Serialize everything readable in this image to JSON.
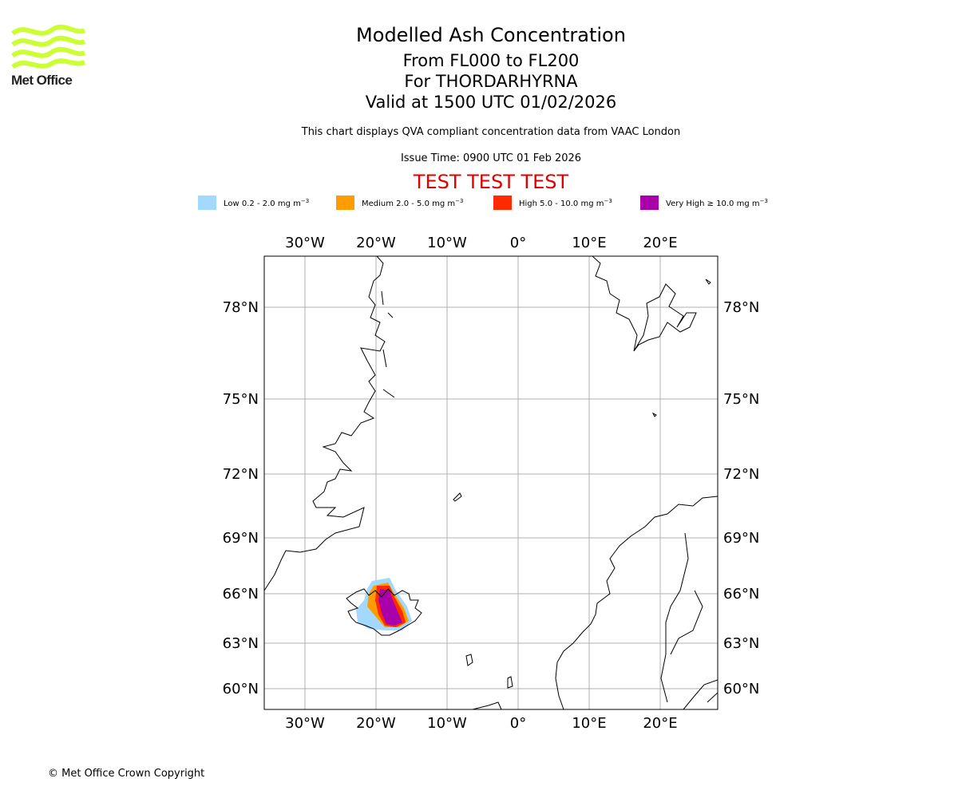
{
  "header": {
    "logo_text": "Met Office",
    "title": "Modelled Ash Concentration",
    "levels": "From FL000 to FL200",
    "volcano": "For THORDARHYRNA",
    "valid": "Valid at 1500 UTC 01/02/2026",
    "description": "This chart displays QVA compliant concentration data from VAAC London",
    "issue_time": "Issue Time: 0900 UTC 01 Feb 2026",
    "test_banner": "TEST TEST TEST"
  },
  "legend": [
    {
      "prefix": "Low 0.2 - 2.0 mg m",
      "color": "#a3d8ff"
    },
    {
      "prefix": "Medium 2.0 - 5.0 mg m",
      "color": "#ff9c00"
    },
    {
      "prefix": "High 5.0 - 10.0 mg m",
      "color": "#ff2a00"
    },
    {
      "prefix": "Very High  ≥  10.0 mg m",
      "color": "#aa00aa"
    }
  ],
  "legend_unit_exponent": "−3",
  "map": {
    "lon_ticks": [
      "30°W",
      "20°W",
      "10°W",
      "0°",
      "10°E",
      "20°E"
    ],
    "lat_ticks": [
      "78°N",
      "75°N",
      "72°N",
      "69°N",
      "66°N",
      "63°N",
      "60°N"
    ],
    "gridline_color": "#b0b0b0"
  },
  "footer": {
    "copyright": "© Met Office Crown Copyright"
  }
}
